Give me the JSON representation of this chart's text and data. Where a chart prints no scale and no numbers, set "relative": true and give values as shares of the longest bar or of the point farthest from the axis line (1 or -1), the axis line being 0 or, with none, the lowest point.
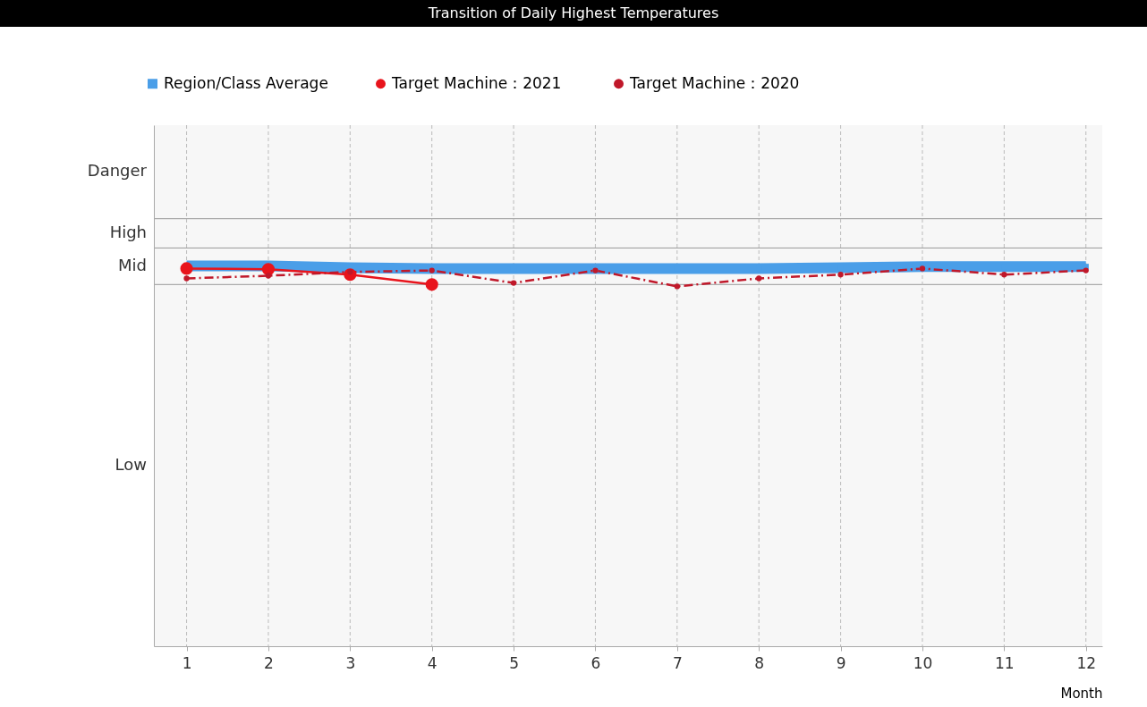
{
  "chart_data": {
    "type": "line",
    "title": "Transition of Daily Highest Temperatures",
    "xlabel": "Month",
    "relative": true,
    "x": [
      1,
      2,
      3,
      4,
      5,
      6,
      7,
      8,
      9,
      10,
      11,
      12
    ],
    "xlim": [
      0.6,
      12.2
    ],
    "xticks": [
      1,
      2,
      3,
      4,
      5,
      6,
      7,
      8,
      9,
      10,
      11,
      12
    ],
    "bands": [
      {
        "axis": "y",
        "from": 0,
        "to": 0.951,
        "label": "Low",
        "color": "#f7f7f7"
      },
      {
        "axis": "y",
        "from": 0.951,
        "to": 1.047,
        "label": "Mid",
        "color": "#f7f7f7"
      },
      {
        "axis": "y",
        "from": 1.047,
        "to": 1.124,
        "label": "High",
        "color": "#f7f7f7"
      },
      {
        "axis": "y",
        "from": 1.124,
        "to": 1.37,
        "label": "Danger",
        "color": "#f7f7f7"
      }
    ],
    "series": [
      {
        "name": "Region/Class Average",
        "color": "#4a9ee8",
        "marker": "square",
        "line_style": "solid",
        "values": [
          1.0,
          1.0,
          0.995,
          0.993,
          0.993,
          0.993,
          0.993,
          0.993,
          0.995,
          0.998,
          0.998,
          0.998
        ]
      },
      {
        "name": "Target  Machine：2021",
        "color": "#e8141c",
        "marker": "circle",
        "line_style": "solid",
        "values": [
          0.993,
          0.991,
          0.977,
          0.951,
          null,
          null,
          null,
          null,
          null,
          null,
          null,
          null
        ]
      },
      {
        "name": "Target  Machine：2020",
        "color": "#c0182a",
        "marker": "circle",
        "line_style": "dashed",
        "values": [
          0.967,
          0.974,
          0.984,
          0.988,
          0.955,
          0.988,
          0.946,
          0.967,
          0.977,
          0.993,
          0.977,
          0.988
        ]
      }
    ],
    "ref_lines": [
      {
        "axis": "y",
        "value": 0.951,
        "color": "#999999"
      },
      {
        "axis": "y",
        "value": 1.047,
        "color": "#999999"
      },
      {
        "axis": "y",
        "value": 1.124,
        "color": "#999999"
      }
    ],
    "grid": "x",
    "legend": "top"
  }
}
